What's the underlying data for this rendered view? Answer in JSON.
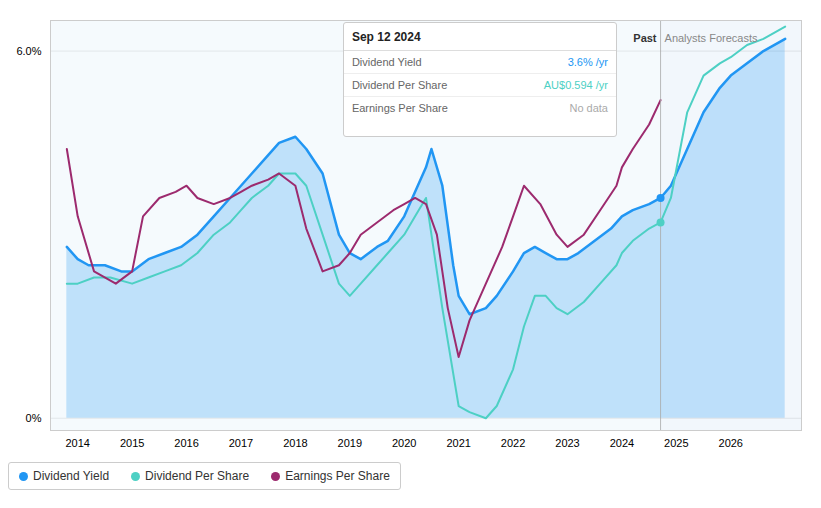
{
  "chart_data": {
    "type": "line",
    "xlim": [
      2013.5,
      2027.3
    ],
    "ylim": [
      -0.002,
      0.065
    ],
    "xticks": [
      2014,
      2015,
      2016,
      2017,
      2018,
      2019,
      2020,
      2021,
      2022,
      2023,
      2024,
      2025,
      2026
    ],
    "yticks": [
      {
        "value": 0.0,
        "label": "0%"
      },
      {
        "value": 0.06,
        "label": "6.0%"
      }
    ],
    "grid": true,
    "legend": "lower left",
    "past_boundary": 2024.71,
    "annotations": [
      {
        "text": "Past",
        "x": 2024.71,
        "y": 0.0615
      },
      {
        "text": "Analysts Forecasts",
        "x": 2024.71,
        "y": 0.0615
      }
    ],
    "tooltip": {
      "title": "Sep 12 2024",
      "rows": [
        {
          "label": "Dividend Yield",
          "value": "3.6% /yr",
          "color": "#2196F3"
        },
        {
          "label": "Dividend Per Share",
          "value": "AU$0.594 /yr",
          "color": "#4DD0C4"
        },
        {
          "label": "Earnings Per Share",
          "value": "No data",
          "color": "#aaaaaa"
        }
      ]
    },
    "series": [
      {
        "name": "Dividend Yield",
        "color": "#2196F3",
        "type": "area",
        "boundary_marker": true,
        "x": [
          2013.8,
          2014.0,
          2014.2,
          2014.5,
          2014.8,
          2015.0,
          2015.3,
          2015.6,
          2015.9,
          2016.2,
          2016.5,
          2016.8,
          2017.0,
          2017.2,
          2017.5,
          2017.7,
          2018.0,
          2018.2,
          2018.5,
          2018.8,
          2019.0,
          2019.2,
          2019.5,
          2019.7,
          2020.0,
          2020.2,
          2020.4,
          2020.5,
          2020.7,
          2020.9,
          2021.0,
          2021.2,
          2021.5,
          2021.7,
          2022.0,
          2022.2,
          2022.4,
          2022.6,
          2022.8,
          2023.0,
          2023.2,
          2023.5,
          2023.8,
          2024.0,
          2024.2,
          2024.5,
          2024.71,
          2024.9,
          2025.2,
          2025.5,
          2025.8,
          2026.0,
          2026.3,
          2026.6,
          2027.0
        ],
        "values": [
          0.028,
          0.026,
          0.025,
          0.025,
          0.024,
          0.024,
          0.026,
          0.027,
          0.028,
          0.03,
          0.033,
          0.036,
          0.038,
          0.04,
          0.043,
          0.045,
          0.046,
          0.044,
          0.04,
          0.03,
          0.027,
          0.026,
          0.028,
          0.029,
          0.033,
          0.037,
          0.041,
          0.044,
          0.038,
          0.025,
          0.02,
          0.017,
          0.018,
          0.02,
          0.024,
          0.027,
          0.028,
          0.027,
          0.026,
          0.026,
          0.027,
          0.029,
          0.031,
          0.033,
          0.034,
          0.035,
          0.036,
          0.038,
          0.044,
          0.05,
          0.054,
          0.056,
          0.058,
          0.06,
          0.062
        ]
      },
      {
        "name": "Dividend Per Share",
        "color": "#4DD0C4",
        "type": "line",
        "boundary_marker": true,
        "x": [
          2013.8,
          2014.0,
          2014.3,
          2014.6,
          2015.0,
          2015.3,
          2015.6,
          2015.9,
          2016.2,
          2016.5,
          2016.8,
          2017.0,
          2017.2,
          2017.5,
          2017.7,
          2018.0,
          2018.2,
          2018.5,
          2018.8,
          2019.0,
          2019.2,
          2019.5,
          2019.7,
          2020.0,
          2020.2,
          2020.4,
          2020.5,
          2020.7,
          2021.0,
          2021.2,
          2021.5,
          2021.7,
          2022.0,
          2022.2,
          2022.4,
          2022.6,
          2022.8,
          2023.0,
          2023.3,
          2023.6,
          2023.9,
          2024.0,
          2024.2,
          2024.5,
          2024.71,
          2024.9,
          2025.2,
          2025.5,
          2025.8,
          2026.0,
          2026.3,
          2026.6,
          2027.0
        ],
        "values": [
          0.022,
          0.022,
          0.023,
          0.023,
          0.022,
          0.023,
          0.024,
          0.025,
          0.027,
          0.03,
          0.032,
          0.034,
          0.036,
          0.038,
          0.04,
          0.04,
          0.038,
          0.03,
          0.022,
          0.02,
          0.022,
          0.025,
          0.027,
          0.03,
          0.033,
          0.036,
          0.03,
          0.018,
          0.002,
          0.001,
          0.0,
          0.002,
          0.008,
          0.015,
          0.02,
          0.02,
          0.018,
          0.017,
          0.019,
          0.022,
          0.025,
          0.027,
          0.029,
          0.031,
          0.032,
          0.036,
          0.05,
          0.056,
          0.058,
          0.059,
          0.061,
          0.062,
          0.064
        ]
      },
      {
        "name": "Earnings Per Share",
        "color": "#9C2A6E",
        "type": "line",
        "boundary_marker": false,
        "x": [
          2013.8,
          2014.0,
          2014.3,
          2014.7,
          2015.0,
          2015.2,
          2015.5,
          2015.8,
          2016.0,
          2016.2,
          2016.5,
          2016.8,
          2017.0,
          2017.2,
          2017.5,
          2017.7,
          2018.0,
          2018.2,
          2018.5,
          2018.8,
          2019.0,
          2019.2,
          2019.5,
          2019.8,
          2020.0,
          2020.2,
          2020.4,
          2020.6,
          2020.8,
          2021.0,
          2021.2,
          2021.5,
          2021.8,
          2022.0,
          2022.2,
          2022.5,
          2022.8,
          2023.0,
          2023.3,
          2023.6,
          2023.9,
          2024.0,
          2024.2,
          2024.5,
          2024.71
        ],
        "values": [
          0.044,
          0.033,
          0.024,
          0.022,
          0.024,
          0.033,
          0.036,
          0.037,
          0.038,
          0.036,
          0.035,
          0.036,
          0.037,
          0.038,
          0.039,
          0.04,
          0.038,
          0.031,
          0.024,
          0.025,
          0.027,
          0.03,
          0.032,
          0.034,
          0.035,
          0.036,
          0.035,
          0.03,
          0.018,
          0.01,
          0.016,
          0.022,
          0.028,
          0.033,
          0.038,
          0.035,
          0.03,
          0.028,
          0.03,
          0.034,
          0.038,
          0.041,
          0.044,
          0.048,
          0.052
        ]
      }
    ]
  }
}
